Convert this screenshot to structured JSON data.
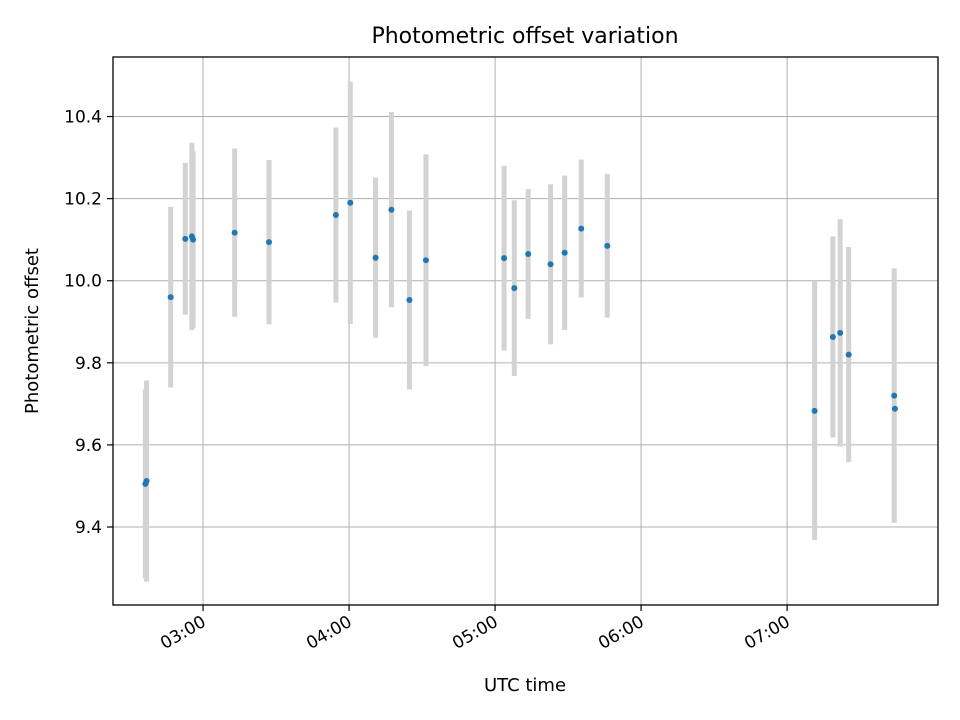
{
  "chart_data": {
    "type": "scatter",
    "title": "Photometric offset variation",
    "xlabel": "UTC time",
    "ylabel": "Photometric offset",
    "x_unit": "UTC",
    "xlim": [
      "02:23",
      "07:62"
    ],
    "ylim": [
      9.21,
      10.545
    ],
    "xticks": [
      "03:00",
      "04:00",
      "05:00",
      "06:00",
      "07:00"
    ],
    "yticks": [
      9.4,
      9.6,
      9.8,
      10.0,
      10.2,
      10.4
    ],
    "grid": true,
    "legend": "none",
    "colors": {
      "point": "#1f77b4",
      "errorbar": "#d3d3d3",
      "grid": "#b0b0b0"
    },
    "points": [
      {
        "x": "02:36.3",
        "y": 9.505,
        "err": 0.23
      },
      {
        "x": "02:36.8",
        "y": 9.512,
        "err": 0.245
      },
      {
        "x": "02:46.7",
        "y": 9.96,
        "err": 0.22
      },
      {
        "x": "02:52.7",
        "y": 10.102,
        "err": 0.185
      },
      {
        "x": "02:55.4",
        "y": 10.108,
        "err": 0.228
      },
      {
        "x": "02:55.9",
        "y": 10.1,
        "err": 0.215
      },
      {
        "x": "03:13.0",
        "y": 10.117,
        "err": 0.205
      },
      {
        "x": "03:27.1",
        "y": 10.094,
        "err": 0.2
      },
      {
        "x": "03:54.6",
        "y": 10.16,
        "err": 0.213
      },
      {
        "x": "04:00.5",
        "y": 10.19,
        "err": 0.295
      },
      {
        "x": "04:10.9",
        "y": 10.056,
        "err": 0.195
      },
      {
        "x": "04:17.4",
        "y": 10.173,
        "err": 0.238
      },
      {
        "x": "04:24.8",
        "y": 9.953,
        "err": 0.218
      },
      {
        "x": "04:31.6",
        "y": 10.05,
        "err": 0.258
      },
      {
        "x": "05:03.7",
        "y": 10.055,
        "err": 0.225
      },
      {
        "x": "05:07.9",
        "y": 9.982,
        "err": 0.214
      },
      {
        "x": "05:13.6",
        "y": 10.065,
        "err": 0.158
      },
      {
        "x": "05:22.8",
        "y": 10.04,
        "err": 0.195
      },
      {
        "x": "05:28.6",
        "y": 10.068,
        "err": 0.188
      },
      {
        "x": "05:35.4",
        "y": 10.127,
        "err": 0.168
      },
      {
        "x": "05:46.1",
        "y": 10.085,
        "err": 0.175
      },
      {
        "x": "07:11.3",
        "y": 9.683,
        "err": 0.315
      },
      {
        "x": "07:18.8",
        "y": 9.863,
        "err": 0.245
      },
      {
        "x": "07:21.8",
        "y": 9.873,
        "err": 0.277
      },
      {
        "x": "07:25.3",
        "y": 9.82,
        "err": 0.262
      },
      {
        "x": "07:44.0",
        "y": 9.72,
        "err": 0.31
      },
      {
        "x": "07:44.3",
        "y": 9.688,
        "err": 0.0
      }
    ]
  }
}
